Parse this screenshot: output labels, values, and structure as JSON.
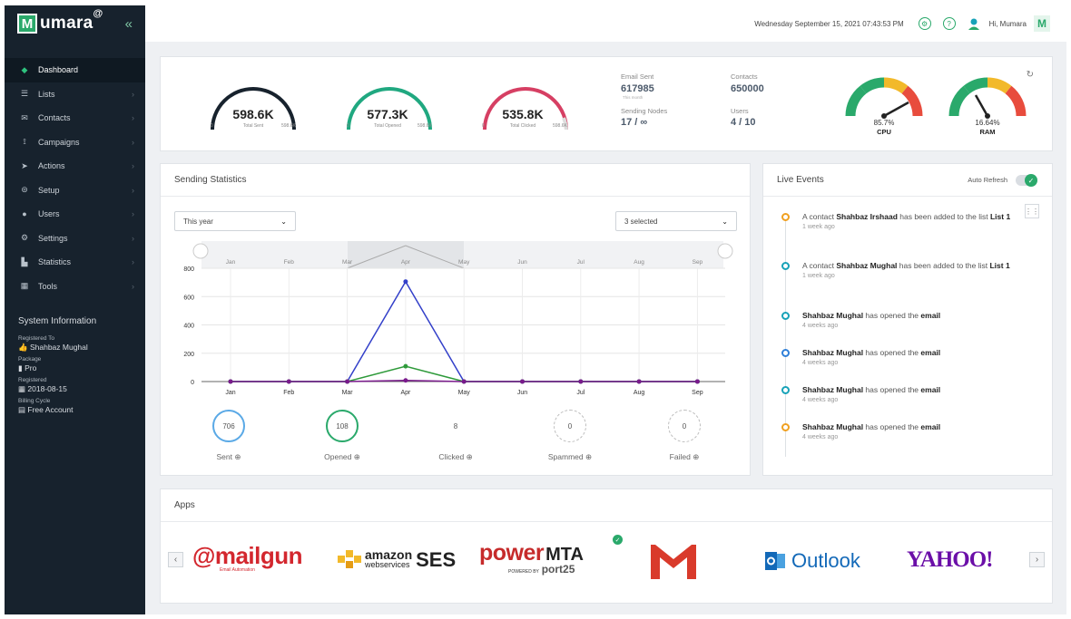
{
  "brand": {
    "letter": "M",
    "name": "umara",
    "at": "@",
    "collapse": "«"
  },
  "sidebar": {
    "items": [
      {
        "label": "Dashboard",
        "icon": "diamond-icon",
        "glyph": "◆",
        "arrow": ""
      },
      {
        "label": "Lists",
        "icon": "list-icon",
        "glyph": "☰",
        "arrow": "›"
      },
      {
        "label": "Contacts",
        "icon": "envelope-icon",
        "glyph": "✉",
        "arrow": "›"
      },
      {
        "label": "Campaigns",
        "icon": "campaign-icon",
        "glyph": "⟟",
        "arrow": "›"
      },
      {
        "label": "Actions",
        "icon": "send-icon",
        "glyph": "➤",
        "arrow": "›"
      },
      {
        "label": "Setup",
        "icon": "toggle-icon",
        "glyph": "⊜",
        "arrow": "›"
      },
      {
        "label": "Users",
        "icon": "user-icon",
        "glyph": "●",
        "arrow": "›"
      },
      {
        "label": "Settings",
        "icon": "gear-icon",
        "glyph": "⚙",
        "arrow": "›"
      },
      {
        "label": "Statistics",
        "icon": "chart-icon",
        "glyph": "▙",
        "arrow": "›"
      },
      {
        "label": "Tools",
        "icon": "tools-icon",
        "glyph": "▦",
        "arrow": "›"
      }
    ],
    "system_info": {
      "title": "System Information",
      "registered_to_label": "Registered To",
      "registered_to": "Shahbaz Mughal",
      "package_label": "Package",
      "package": "Pro",
      "registered_label": "Registered",
      "registered": "2018-08-15",
      "billing_label": "Billing Cycle",
      "billing": "Free Account"
    }
  },
  "topbar": {
    "datetime": "Wednesday September 15, 2021 07:43:53 PM",
    "greeting": "Hi,",
    "username": "Mumara",
    "avatar_letter": "M",
    "settings_glyph": "⚙",
    "help_glyph": "?"
  },
  "summary": {
    "gauges": [
      {
        "value": "598.6K",
        "sub": "Total Sent",
        "min": "0",
        "max": "598.6K",
        "color": "#17222d"
      },
      {
        "value": "577.3K",
        "sub": "Total Opened",
        "min": "0",
        "max": "598.6K",
        "color": "#20a880"
      },
      {
        "value": "535.8K",
        "sub": "Total Clicked",
        "min": "0",
        "max": "598.6K",
        "color": "#d63f63"
      }
    ],
    "stats": {
      "email_sent_label": "Email Sent",
      "email_sent": "617985",
      "email_sent_note": "This month",
      "contacts_label": "Contacts",
      "contacts": "650000",
      "nodes_label": "Sending Nodes",
      "nodes": "17 / ∞",
      "users_label": "Users",
      "users": "4 / 10"
    },
    "meters": [
      {
        "pct": "85.7%",
        "name": "CPU"
      },
      {
        "pct": "16.64%",
        "name": "RAM"
      }
    ],
    "refresh_glyph": "↻"
  },
  "sending_stats": {
    "title": "Sending Statistics",
    "period_select": "This year",
    "series_select": "3 selected",
    "summary": [
      {
        "label": "Sent",
        "value": "706",
        "color": "#5aa9e6"
      },
      {
        "label": "Opened",
        "value": "108",
        "color": "#2aa96b"
      },
      {
        "label": "Clicked",
        "value": "8",
        "color": ""
      },
      {
        "label": "Spammed",
        "value": "0",
        "color": "#bbbbbb"
      },
      {
        "label": "Failed",
        "value": "0",
        "color": "#bbbbbb"
      }
    ],
    "info_glyph": "⊕"
  },
  "chart_data": {
    "type": "line",
    "categories": [
      "Jan",
      "Feb",
      "Mar",
      "Apr",
      "May",
      "Jun",
      "Jul",
      "Aug",
      "Sep"
    ],
    "series": [
      {
        "name": "Sent",
        "color": "#3340c9",
        "values": [
          0,
          0,
          0,
          706,
          0,
          0,
          0,
          0,
          0
        ]
      },
      {
        "name": "Opened",
        "color": "#2e9a3a",
        "values": [
          0,
          0,
          0,
          108,
          0,
          0,
          0,
          0,
          0
        ]
      },
      {
        "name": "Clicked",
        "color": "#7a1a8c",
        "values": [
          0,
          0,
          0,
          8,
          0,
          0,
          0,
          0,
          0
        ]
      }
    ],
    "yticks": [
      "0",
      "200",
      "400",
      "600",
      "800"
    ],
    "ylim": [
      0,
      800
    ],
    "navigator_labels": [
      "Jan",
      "Feb",
      "Mar",
      "Apr",
      "May",
      "Jun",
      "Jul",
      "Aug",
      "Sep"
    ]
  },
  "live_events": {
    "title": "Live Events",
    "auto_refresh_label": "Auto Refresh",
    "events": [
      {
        "pre": "A contact ",
        "name": "Shahbaz Irshaad",
        "mid": " has been added to the list ",
        "obj": "List 1",
        "time": "1 week ago",
        "color": "#f0a020"
      },
      {
        "pre": "A contact ",
        "name": "Shahbaz Mughal",
        "mid": " has been added to the list ",
        "obj": "List 1",
        "time": "1 week ago",
        "color": "#17a2b8"
      },
      {
        "pre": "",
        "name": "Shahbaz Mughal",
        "mid": " has opened the ",
        "obj": "email",
        "time": "4 weeks ago",
        "color": "#17a2b8"
      },
      {
        "pre": "",
        "name": "Shahbaz Mughal",
        "mid": " has opened the ",
        "obj": "email",
        "time": "4 weeks ago",
        "color": "#2f7fd8"
      },
      {
        "pre": "",
        "name": "Shahbaz Mughal",
        "mid": " has opened the ",
        "obj": "email",
        "time": "4 weeks ago",
        "color": "#17a2b8"
      },
      {
        "pre": "",
        "name": "Shahbaz Mughal",
        "mid": " has opened the ",
        "obj": "email",
        "time": "4 weeks ago",
        "color": "#f0a020"
      }
    ]
  },
  "apps": {
    "title": "Apps",
    "logos": {
      "mailgun": "@mailgun",
      "mailgun_sub": "Email Automation",
      "amazon_top": "amazon",
      "amazon_sub": "webservices",
      "amazon_ses": "SES",
      "power": "power",
      "mta": "MTA",
      "powered_by": "POWERED BY",
      "port25": "port25",
      "outlook": "Outlook",
      "yahoo": "YAHOO!"
    },
    "prev": "‹",
    "next": "›"
  }
}
